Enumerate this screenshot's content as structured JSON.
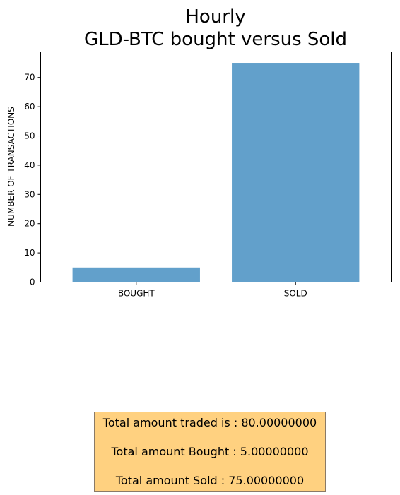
{
  "chart_data": {
    "type": "bar",
    "title": "Hourly\nGLD-BTC bought versus Sold",
    "title_lines": [
      "Hourly",
      "GLD-BTC bought versus Sold"
    ],
    "categories": [
      "BOUGHT",
      "SOLD"
    ],
    "values": [
      5,
      75
    ],
    "xlabel": "",
    "ylabel": "NUMBER OF TRANSACTIONS",
    "ylim": [
      0,
      78.75
    ],
    "yticks": [
      0,
      10,
      20,
      30,
      40,
      50,
      60,
      70
    ],
    "grid": false,
    "bar_color": "#62a0cb"
  },
  "summary": {
    "total_traded": "Total amount traded is : 80.00000000",
    "total_bought": "Total amount Bought : 5.00000000",
    "total_sold": "Total amount Sold : 75.00000000",
    "background": "#ffd180"
  }
}
